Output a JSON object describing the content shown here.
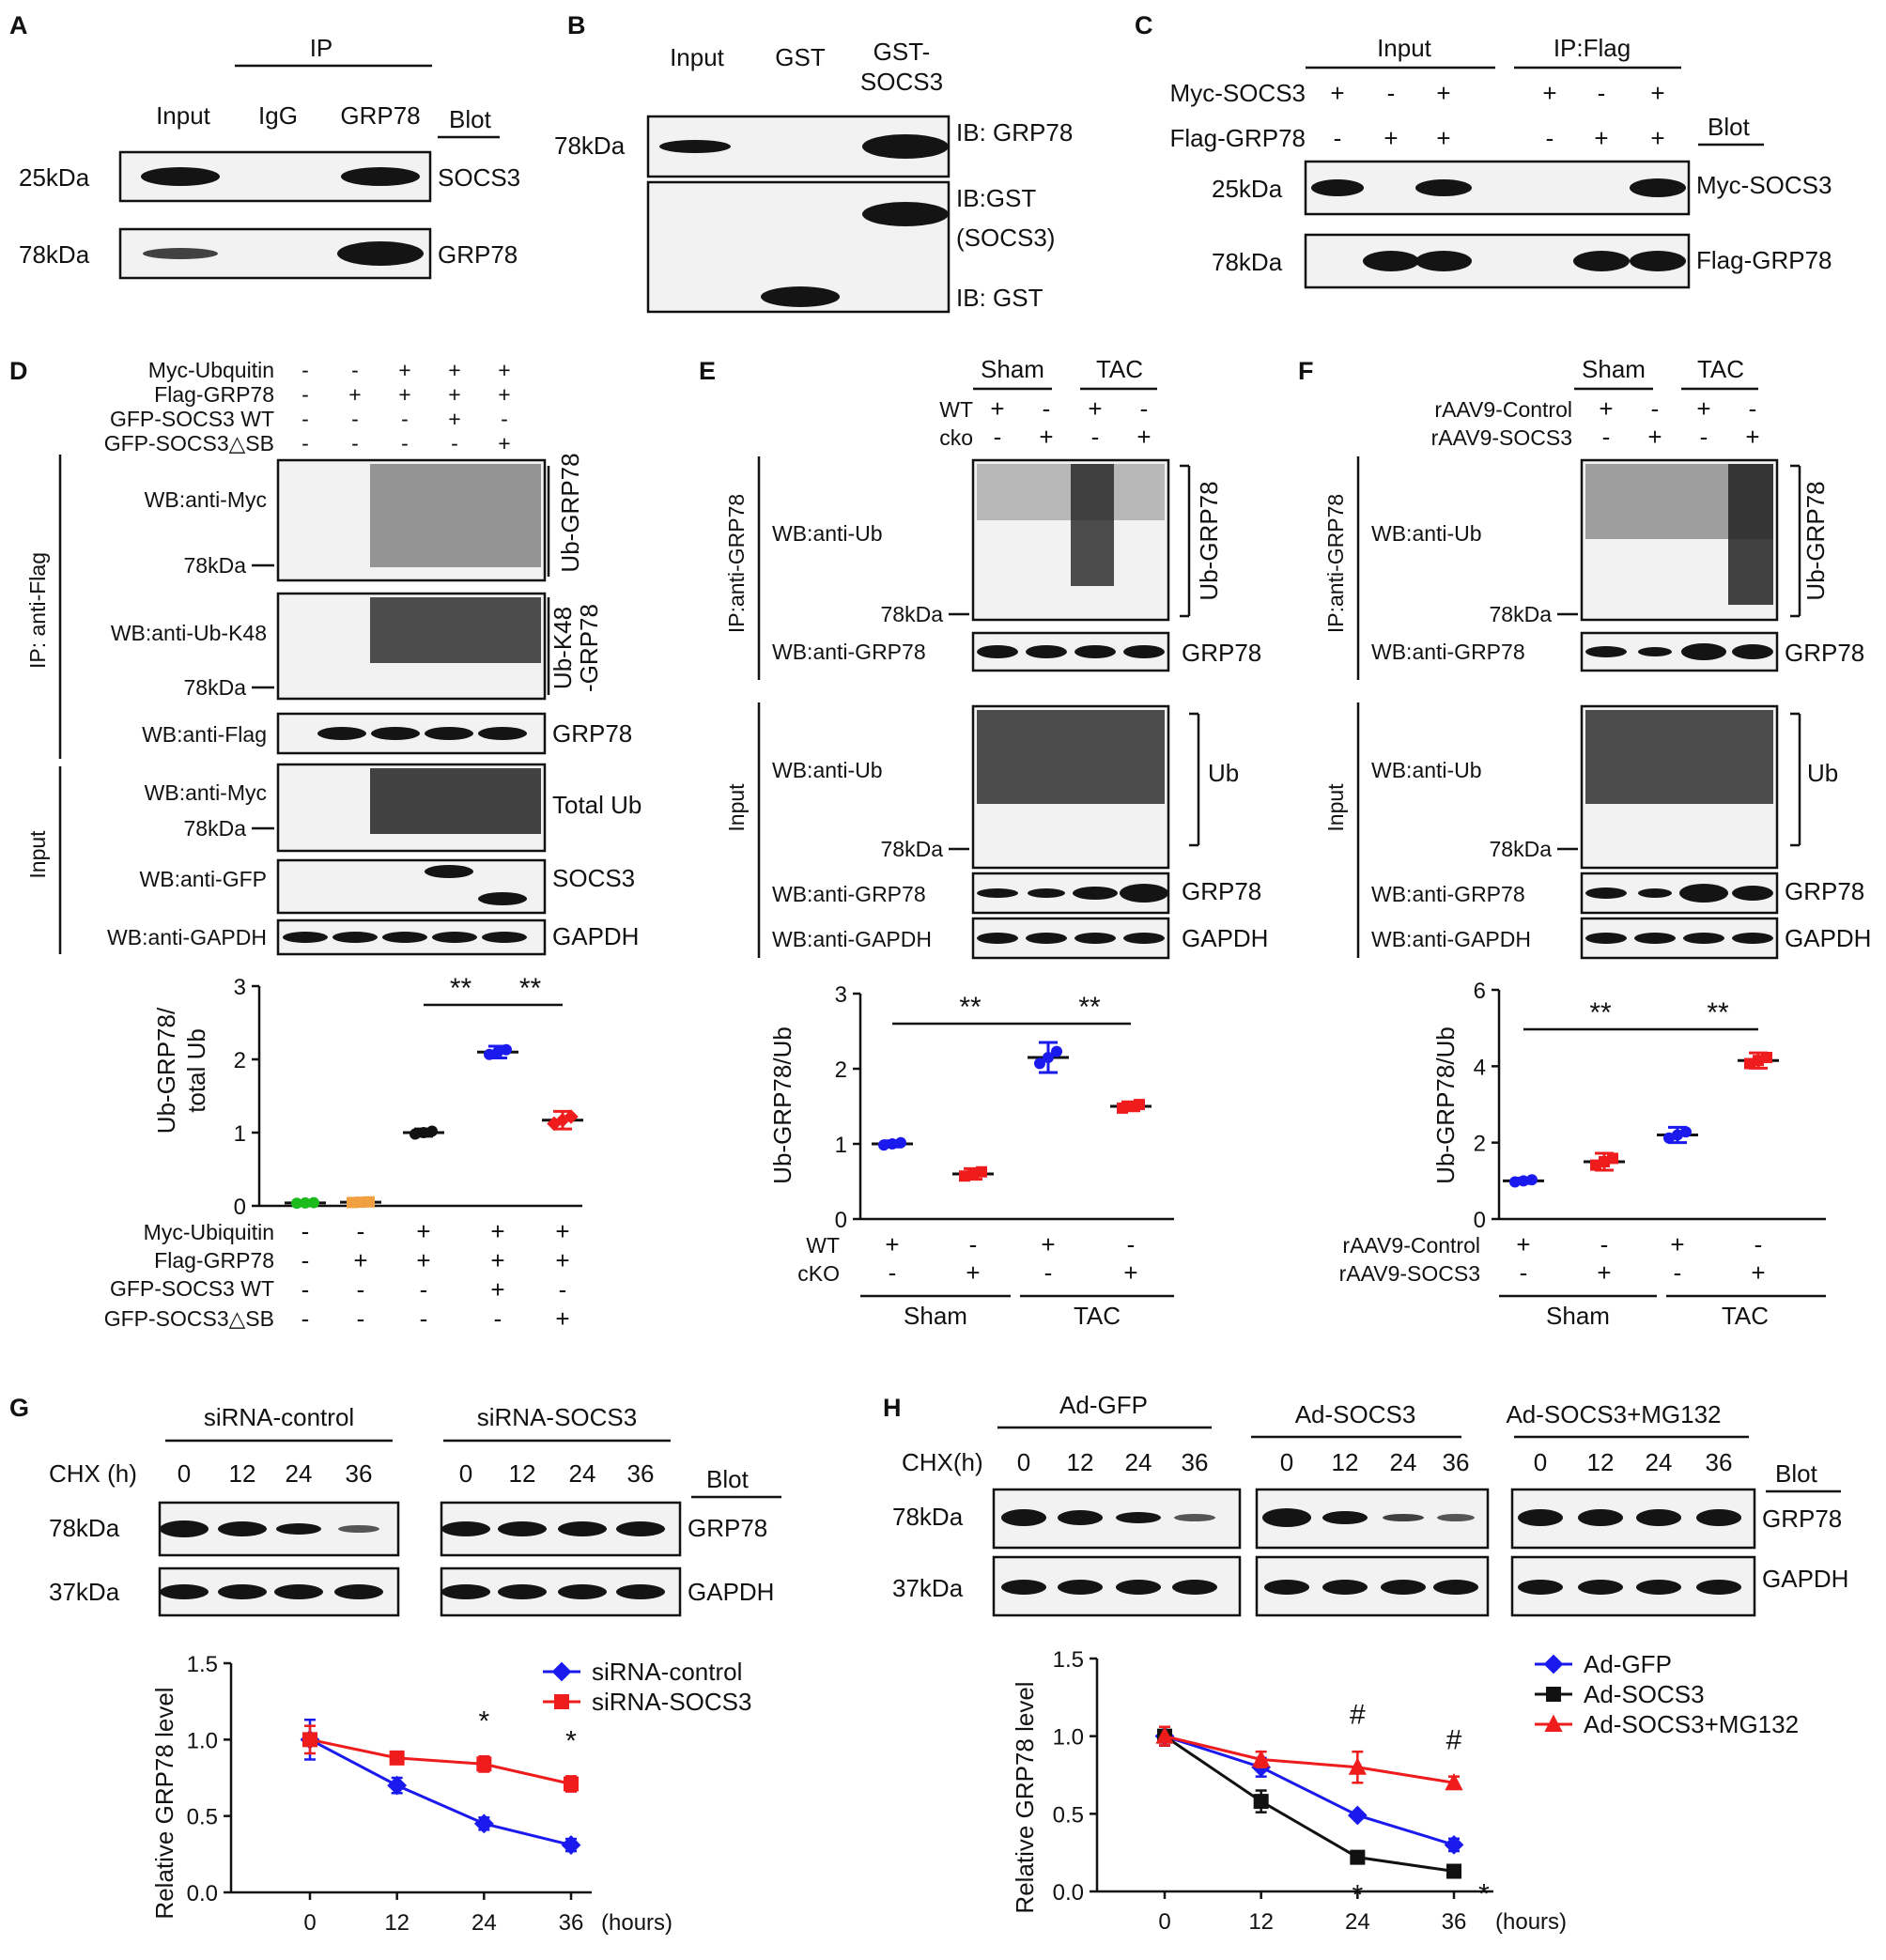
{
  "panels": {
    "A": {
      "letter": "A",
      "ip_header": "IP",
      "lanes": [
        "Input",
        "IgG",
        "GRP78"
      ],
      "blot_header": "Blot",
      "rows": [
        {
          "mw": "25kDa",
          "target": "SOCS3"
        },
        {
          "mw": "78kDa",
          "target": "GRP78"
        }
      ]
    },
    "B": {
      "letter": "B",
      "lanes": [
        "Input",
        "GST",
        "GST-",
        "SOCS3"
      ],
      "mw": "78kDa",
      "ib_labels": [
        "IB: GRP78",
        "IB:GST",
        "(SOCS3)",
        "IB: GST"
      ]
    },
    "C": {
      "letter": "C",
      "groups": [
        "Input",
        "IP:Flag"
      ],
      "row_labels": [
        "Myc-SOCS3",
        "Flag-GRP78"
      ],
      "myc_signs": [
        "+",
        "-",
        "+",
        "+",
        "-",
        "+"
      ],
      "flag_signs": [
        "-",
        "+",
        "+",
        "-",
        "+",
        "+"
      ],
      "blot_header": "Blot",
      "rows": [
        {
          "mw": "25kDa",
          "target": "Myc-SOCS3"
        },
        {
          "mw": "78kDa",
          "target": "Flag-GRP78"
        }
      ]
    },
    "D": {
      "letter": "D",
      "treat_labels": [
        "Myc-Ubquitin",
        "Flag-GRP78",
        "GFP-SOCS3 WT",
        "GFP-SOCS3△SB"
      ],
      "treat_signs": [
        [
          "-",
          "-",
          "+",
          "+",
          "+"
        ],
        [
          "-",
          "+",
          "+",
          "+",
          "+"
        ],
        [
          "-",
          "-",
          "-",
          "+",
          "-"
        ],
        [
          "-",
          "-",
          "-",
          "-",
          "+"
        ]
      ],
      "side_labels": [
        "IP: anti-Flag",
        "Input"
      ],
      "wb_labels": [
        "WB:anti-Myc",
        "WB:anti-Ub-K48",
        "WB:anti-Flag",
        "WB:anti-Myc",
        "WB:anti-GFP",
        "WB:anti-GAPDH"
      ],
      "mw": "78kDa",
      "right_labels": [
        "Ub-GRP78",
        "Ub-K48",
        "-GRP78",
        "GRP78",
        "Total Ub",
        "SOCS3",
        "GAPDH"
      ],
      "ylabel_1": "Ub-GRP78/",
      "ylabel_2": "total Ub",
      "sig": [
        "**",
        "**"
      ],
      "xlabels": [
        "Myc-Ubiquitin",
        "Flag-GRP78",
        "GFP-SOCS3 WT",
        "GFP-SOCS3△SB"
      ],
      "xsigns": [
        [
          "-",
          "-",
          "+",
          "+",
          "+"
        ],
        [
          "-",
          "+",
          "+",
          "+",
          "+"
        ],
        [
          "-",
          "-",
          "-",
          "+",
          "-"
        ],
        [
          "-",
          "-",
          "-",
          "-",
          "+"
        ]
      ]
    },
    "E": {
      "letter": "E",
      "groups": [
        "Sham",
        "TAC"
      ],
      "row_labels": [
        "WT",
        "cko"
      ],
      "wt_signs": [
        "+",
        "-",
        "+",
        "-"
      ],
      "cko_signs": [
        "-",
        "+",
        "-",
        "+"
      ],
      "side_labels": [
        "IP:anti-GRP78",
        "Input"
      ],
      "wb_labels": [
        "WB:anti-Ub",
        "WB:anti-GRP78",
        "WB:anti-Ub",
        "WB:anti-GRP78",
        "WB:anti-GAPDH"
      ],
      "mw": "78kDa",
      "right_labels": [
        "Ub-GRP78",
        "GRP78",
        "Ub",
        "GRP78",
        "GAPDH"
      ],
      "ylabel": "Ub-GRP78/Ub",
      "sig": [
        "**",
        "**"
      ],
      "x_rows": [
        "WT",
        "cKO"
      ],
      "x_wt": [
        "+",
        "-",
        "+",
        "-"
      ],
      "x_cko": [
        "-",
        "+",
        "-",
        "+"
      ],
      "x_groups": [
        "Sham",
        "TAC"
      ]
    },
    "F": {
      "letter": "F",
      "groups": [
        "Sham",
        "TAC"
      ],
      "row_labels": [
        "rAAV9-Control",
        "rAAV9-SOCS3"
      ],
      "ctrl_signs": [
        "+",
        "-",
        "+",
        "-"
      ],
      "socs_signs": [
        "-",
        "+",
        "-",
        "+"
      ],
      "side_labels": [
        "IP:anti-GRP78",
        "Input"
      ],
      "wb_labels": [
        "WB:anti-Ub",
        "WB:anti-GRP78",
        "WB:anti-Ub",
        "WB:anti-GRP78",
        "WB:anti-GAPDH"
      ],
      "mw": "78kDa",
      "right_labels": [
        "Ub-GRP78",
        "GRP78",
        "Ub",
        "GRP78",
        "GAPDH"
      ],
      "ylabel": "Ub-GRP78/Ub",
      "sig": [
        "**",
        "**"
      ],
      "x_rows": [
        "rAAV9-Control",
        "rAAV9-SOCS3"
      ],
      "x_groups": [
        "Sham",
        "TAC"
      ]
    },
    "G": {
      "letter": "G",
      "groups": [
        "siRNA-control",
        "siRNA-SOCS3"
      ],
      "chx_label": "CHX (h)",
      "times": [
        "0",
        "12",
        "24",
        "36"
      ],
      "blot_header": "Blot",
      "rows": [
        {
          "mw": "78kDa",
          "target": "GRP78"
        },
        {
          "mw": "37kDa",
          "target": "GAPDH"
        }
      ],
      "ylabel": "Relative GRP78 level",
      "xunit": "(hours)",
      "star": "*"
    },
    "H": {
      "letter": "H",
      "groups": [
        "Ad-GFP",
        "Ad-SOCS3",
        "Ad-SOCS3+MG132"
      ],
      "chx_label": "CHX(h)",
      "times": [
        "0",
        "12",
        "24",
        "36"
      ],
      "blot_header": "Blot",
      "rows": [
        {
          "mw": "78kDa",
          "target": "GRP78"
        },
        {
          "mw": "37kDa",
          "target": "GAPDH"
        }
      ],
      "ylabel": "Relative GRP78 level",
      "xunit": "(hours)",
      "star": "*",
      "hash": "#"
    }
  },
  "chart_data": [
    {
      "id": "D",
      "type": "scatter",
      "title": "",
      "ylabel": "Ub-GRP78/ total Ub",
      "ylim": [
        0,
        3
      ],
      "yticks": [
        "0",
        "1",
        "2",
        "3"
      ],
      "groups": [
        {
          "mean": 0.04,
          "sd": 0.01,
          "color": "#1bbb1b",
          "marker": "circle"
        },
        {
          "mean": 0.05,
          "sd": 0.01,
          "color": "#f0a040",
          "marker": "square"
        },
        {
          "mean": 1.0,
          "sd": 0.05,
          "color": "#111111",
          "marker": "circle"
        },
        {
          "mean": 2.1,
          "sd": 0.08,
          "color": "#1a1aee",
          "marker": "circle"
        },
        {
          "mean": 1.17,
          "sd": 0.12,
          "color": "#ee1c1c",
          "marker": "diamond"
        }
      ],
      "comparisons": [
        [
          2,
          3,
          "**"
        ],
        [
          3,
          4,
          "**"
        ]
      ]
    },
    {
      "id": "E",
      "type": "scatter",
      "ylabel": "Ub-GRP78/Ub",
      "ylim": [
        0,
        3
      ],
      "yticks": [
        "0",
        "1",
        "2",
        "3"
      ],
      "groups": [
        {
          "mean": 1.0,
          "sd": 0.04,
          "color": "#1a1aee",
          "marker": "circle"
        },
        {
          "mean": 0.6,
          "sd": 0.07,
          "color": "#ee1c1c",
          "marker": "square"
        },
        {
          "mean": 2.15,
          "sd": 0.2,
          "color": "#1a1aee",
          "marker": "circle"
        },
        {
          "mean": 1.5,
          "sd": 0.06,
          "color": "#ee1c1c",
          "marker": "square"
        }
      ],
      "comparisons": [
        [
          0,
          2,
          "**"
        ],
        [
          2,
          3,
          "**"
        ]
      ]
    },
    {
      "id": "F",
      "type": "scatter",
      "ylabel": "Ub-GRP78/Ub",
      "ylim": [
        0,
        6
      ],
      "yticks": [
        "0",
        "2",
        "4",
        "6"
      ],
      "groups": [
        {
          "mean": 1.0,
          "sd": 0.07,
          "color": "#1a1aee",
          "marker": "circle"
        },
        {
          "mean": 1.5,
          "sd": 0.22,
          "color": "#ee1c1c",
          "marker": "square"
        },
        {
          "mean": 2.2,
          "sd": 0.2,
          "color": "#1a1aee",
          "marker": "circle"
        },
        {
          "mean": 4.15,
          "sd": 0.2,
          "color": "#ee1c1c",
          "marker": "square"
        }
      ],
      "comparisons": [
        [
          0,
          2,
          "**"
        ],
        [
          2,
          3,
          "**"
        ]
      ]
    },
    {
      "id": "G",
      "type": "line",
      "xlabel": "(hours)",
      "ylabel": "Relative GRP78 level",
      "x": [
        0,
        12,
        24,
        36
      ],
      "xticks": [
        "0",
        "12",
        "24",
        "36"
      ],
      "ylim": [
        0,
        1.5
      ],
      "yticks": [
        "0.0",
        "0.5",
        "1.0",
        "1.5"
      ],
      "series": [
        {
          "name": "siRNA-control",
          "color": "#1a1aee",
          "marker": "diamond",
          "values": [
            1.0,
            0.7,
            0.45,
            0.31
          ],
          "err": [
            0.13,
            0.05,
            0.04,
            0.04
          ]
        },
        {
          "name": "siRNA-SOCS3",
          "color": "#ee1c1c",
          "marker": "square",
          "values": [
            1.0,
            0.88,
            0.84,
            0.71
          ],
          "err": [
            0.09,
            0.03,
            0.05,
            0.05
          ]
        }
      ],
      "annotations": [
        {
          "x": 24,
          "text": "*"
        },
        {
          "x": 36,
          "text": "*"
        }
      ]
    },
    {
      "id": "H",
      "type": "line",
      "xlabel": "(hours)",
      "ylabel": "Relative GRP78 level",
      "x": [
        0,
        12,
        24,
        36
      ],
      "xticks": [
        "0",
        "12",
        "24",
        "36"
      ],
      "ylim": [
        0,
        1.5
      ],
      "yticks": [
        "0.0",
        "0.5",
        "1.0",
        "1.5"
      ],
      "series": [
        {
          "name": "Ad-GFP",
          "color": "#1a1aee",
          "marker": "diamond",
          "values": [
            1.0,
            0.8,
            0.49,
            0.3
          ],
          "err": [
            0.06,
            0.06,
            0.02,
            0.04
          ]
        },
        {
          "name": "Ad-SOCS3",
          "color": "#111111",
          "marker": "square",
          "values": [
            1.0,
            0.58,
            0.22,
            0.13
          ],
          "err": [
            0.06,
            0.07,
            0.03,
            0.02
          ]
        },
        {
          "name": "Ad-SOCS3+MG132",
          "color": "#ee1c1c",
          "marker": "triangle",
          "values": [
            1.0,
            0.85,
            0.8,
            0.7
          ],
          "err": [
            0.06,
            0.05,
            0.1,
            0.04
          ]
        }
      ],
      "annotations": [
        {
          "x": 24,
          "text": "#"
        },
        {
          "x": 36,
          "text": "#"
        },
        {
          "x": 24,
          "text": "*"
        },
        {
          "x": 36,
          "text": "*"
        }
      ]
    }
  ]
}
